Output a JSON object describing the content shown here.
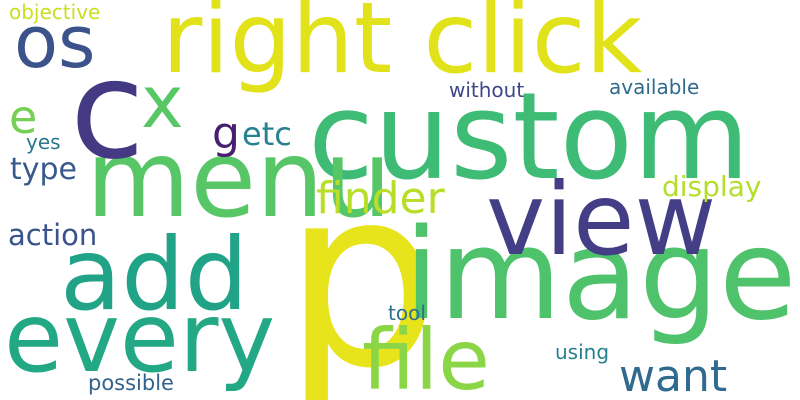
{
  "background": "#ffffff",
  "words": [
    {
      "text": "p",
      "color": "#e8e41c"
    },
    {
      "text": "custom",
      "color": "#3ebb74"
    },
    {
      "text": "right click",
      "color": "#e2e21a"
    },
    {
      "text": "image",
      "color": "#4fc26c"
    },
    {
      "text": "menu",
      "color": "#56c667"
    },
    {
      "text": "c",
      "color": "#443983"
    },
    {
      "text": "every",
      "color": "#22a884"
    },
    {
      "text": "view",
      "color": "#433e85"
    },
    {
      "text": "add",
      "color": "#20a386"
    },
    {
      "text": "file",
      "color": "#8bd646"
    },
    {
      "text": "os",
      "color": "#3b528b"
    },
    {
      "text": "x",
      "color": "#58c765"
    },
    {
      "text": "want",
      "color": "#306a8e"
    },
    {
      "text": "finder",
      "color": "#b8de29"
    },
    {
      "text": "e",
      "color": "#75d054"
    },
    {
      "text": "g",
      "color": "#481f70"
    },
    {
      "text": "etc",
      "color": "#26828e"
    },
    {
      "text": "display",
      "color": "#b5de2b"
    },
    {
      "text": "type",
      "color": "#38598c"
    },
    {
      "text": "action",
      "color": "#3a538b"
    },
    {
      "text": "without",
      "color": "#3f4788"
    },
    {
      "text": "available",
      "color": "#2f6b8e"
    },
    {
      "text": "objective",
      "color": "#c8e020"
    },
    {
      "text": "yes",
      "color": "#2a788e"
    },
    {
      "text": "tool",
      "color": "#2c728e"
    },
    {
      "text": "using",
      "color": "#27808e"
    },
    {
      "text": "possible",
      "color": "#33638d"
    }
  ]
}
